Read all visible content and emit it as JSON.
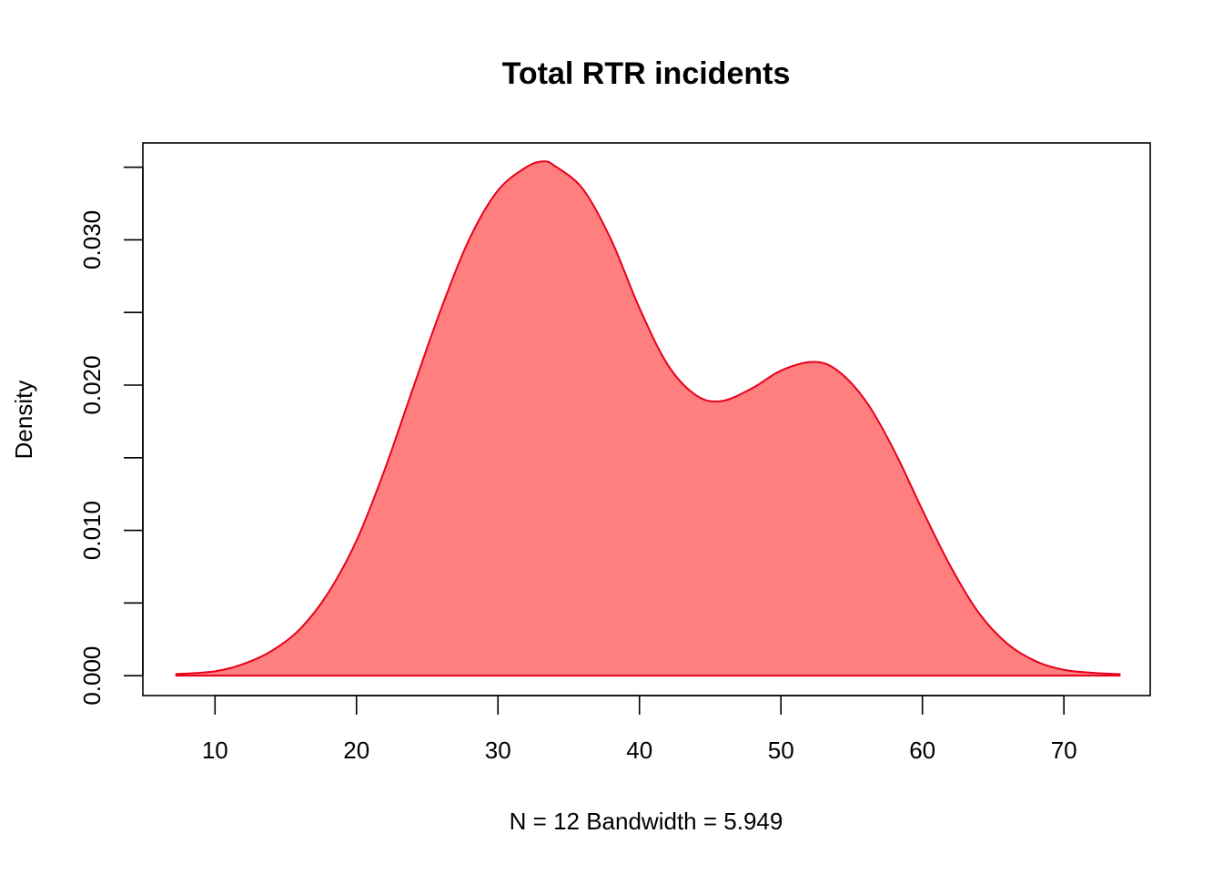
{
  "chart_data": {
    "type": "area",
    "title": "Total RTR incidents",
    "xlabel": "N = 12   Bandwidth = 5.949",
    "ylabel": "Density",
    "xlim": [
      4.9,
      76.1
    ],
    "ylim": [
      -0.00137,
      0.03667
    ],
    "x_ticks": [
      10,
      20,
      30,
      40,
      50,
      60,
      70
    ],
    "x_tick_labels": [
      "10",
      "20",
      "30",
      "40",
      "50",
      "60",
      "70"
    ],
    "y_ticks": [
      0,
      0.005,
      0.01,
      0.015,
      0.02,
      0.025,
      0.03,
      0.035
    ],
    "y_tick_labels": [
      "0.000",
      "",
      "0.010",
      "",
      "0.020",
      "",
      "0.030",
      ""
    ],
    "grid": false,
    "legend": "none",
    "fill_color": "#ff7f7f",
    "line_color": "#e8001a",
    "series": [
      {
        "x": [
          7.2,
          10,
          12,
          14,
          16,
          18,
          20,
          22,
          24,
          26,
          28,
          30,
          32,
          33.2,
          34,
          36,
          38,
          40,
          42,
          44,
          45.8,
          48,
          50,
          52.3,
          54,
          56,
          58,
          60,
          62,
          64,
          66,
          68,
          70,
          72,
          74
        ],
        "y": [
          0.0001,
          0.0003,
          0.0008,
          0.0017,
          0.0032,
          0.0057,
          0.0093,
          0.0142,
          0.0198,
          0.0253,
          0.0301,
          0.0334,
          0.035,
          0.0354,
          0.0351,
          0.0335,
          0.03,
          0.0253,
          0.0214,
          0.0193,
          0.0189,
          0.0198,
          0.021,
          0.0216,
          0.021,
          0.0189,
          0.0155,
          0.0114,
          0.0075,
          0.0043,
          0.0022,
          0.001,
          0.0004,
          0.0002,
          0.0001
        ]
      }
    ]
  }
}
